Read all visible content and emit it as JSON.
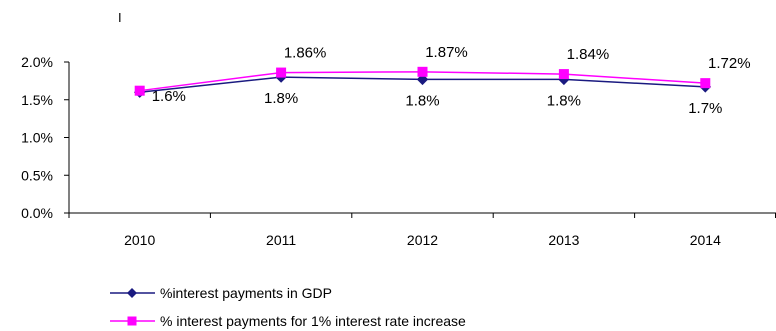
{
  "chart_data": {
    "type": "line",
    "title": "",
    "stray_mark": "I",
    "categories": [
      "2010",
      "2011",
      "2012",
      "2013",
      "2014"
    ],
    "ylim": [
      0,
      2.0
    ],
    "yticks": [
      0.0,
      0.5,
      1.0,
      1.5,
      2.0
    ],
    "ytick_labels": [
      "0.0%",
      "0.5%",
      "1.0%",
      "1.5%",
      "2.0%"
    ],
    "grid": false,
    "legend_position": "bottom-left",
    "series": [
      {
        "name": "%interest payments in GDP",
        "values": [
          1.6,
          1.8,
          1.77,
          1.77,
          1.67
        ],
        "labels": [
          "1.6%",
          "1.8%",
          "1.8%",
          "1.8%",
          "1.7%"
        ],
        "color": "#1A1A80",
        "marker": "diamond"
      },
      {
        "name": "% interest payments for  1% interest rate increase",
        "values": [
          1.62,
          1.86,
          1.87,
          1.84,
          1.72
        ],
        "labels": [
          "",
          "1.86%",
          "1.87%",
          "1.84%",
          "1.72%"
        ],
        "color": "#FF00FF",
        "marker": "square"
      }
    ]
  }
}
